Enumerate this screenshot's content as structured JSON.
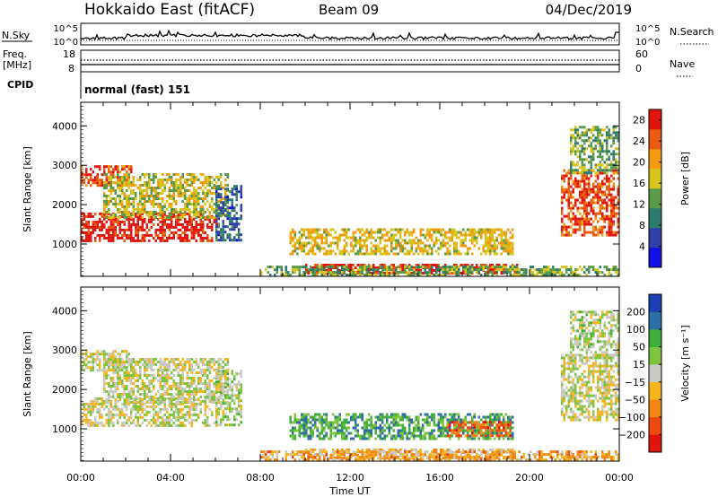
{
  "header": {
    "station": "Hokkaido East (fitACF)",
    "beam": "Beam 09",
    "date": "04/Dec/2019"
  },
  "top_panels": {
    "nsky_label": "N.Sky",
    "nsky_ticks": [
      "10^5",
      "10^0"
    ],
    "nsearch_label": "N.Search",
    "nsearch_ticks": [
      "10^5",
      "10^0"
    ],
    "freq_label": "Freq.",
    "freq_unit": "[MHz]",
    "freq_ticks": [
      18,
      8
    ],
    "nave_label": "Nave",
    "nave_ticks": [
      60,
      0
    ],
    "cpid_label": "CPID",
    "cpid_value": "normal (fast) 151"
  },
  "chart_data": [
    {
      "type": "heatmap",
      "quantity": "Power",
      "ylabel": "Slant Range [km]",
      "xlabel": "Time UT",
      "xlim": [
        0,
        24
      ],
      "ylim": [
        180,
        4600
      ],
      "x_tick_labels": [
        "00:00",
        "04:00",
        "08:00",
        "12:00",
        "16:00",
        "20:00",
        "00:00"
      ],
      "y_ticks": [
        1000,
        2000,
        3000,
        4000
      ],
      "colorbar": {
        "label": "Power [dB]",
        "ticks": [
          4,
          8,
          12,
          16,
          20,
          24,
          28
        ],
        "range": [
          0,
          30
        ],
        "colors": [
          "#1010e6",
          "#2f3fa8",
          "#2e7a6c",
          "#5b9a48",
          "#d8c41e",
          "#f39a12",
          "#e95b0f",
          "#e0150d"
        ]
      },
      "regions": [
        {
          "t": [
            0.0,
            6.1
          ],
          "r": [
            1100,
            1800
          ],
          "level": 0.95
        },
        {
          "t": [
            0.0,
            2.3
          ],
          "r": [
            2500,
            3000
          ],
          "level": 0.85
        },
        {
          "t": [
            1.0,
            6.6
          ],
          "r": [
            1700,
            2800
          ],
          "level": 0.55
        },
        {
          "t": [
            6.0,
            7.2
          ],
          "r": [
            1100,
            2500
          ],
          "level": 0.25
        },
        {
          "t": [
            9.3,
            19.3
          ],
          "r": [
            750,
            1400
          ],
          "level": 0.6
        },
        {
          "t": [
            10.0,
            19.5
          ],
          "r": [
            250,
            500
          ],
          "level": 0.9
        },
        {
          "t": [
            8.0,
            24.0
          ],
          "r": [
            200,
            450
          ],
          "level": 0.45
        },
        {
          "t": [
            21.4,
            24.0
          ],
          "r": [
            1200,
            2900
          ],
          "level": 0.85
        },
        {
          "t": [
            21.8,
            24.0
          ],
          "r": [
            2800,
            4000
          ],
          "level": 0.45
        }
      ]
    },
    {
      "type": "heatmap",
      "quantity": "Velocity",
      "ylabel": "Slant Range [km]",
      "xlabel": "Time UT",
      "xlim": [
        0,
        24
      ],
      "ylim": [
        180,
        4600
      ],
      "x_tick_labels": [
        "00:00",
        "04:00",
        "08:00",
        "12:00",
        "16:00",
        "20:00",
        "00:00"
      ],
      "y_ticks": [
        1000,
        2000,
        3000,
        4000
      ],
      "colorbar": {
        "label": "Velocity [m s⁻¹]",
        "ticks": [
          200,
          100,
          50,
          15,
          -15,
          -50,
          -100,
          -200
        ],
        "range": [
          -250,
          250
        ],
        "colors": [
          "#e0150d",
          "#ee4a10",
          "#f38512",
          "#f6b51f",
          "#c9c9c2",
          "#7ec441",
          "#3fae3a",
          "#2d6ea5",
          "#1c3fb6"
        ]
      },
      "regions": [
        {
          "t": [
            0.0,
            6.1
          ],
          "r": [
            1100,
            1800
          ],
          "level": 0.5
        },
        {
          "t": [
            0.0,
            2.3
          ],
          "r": [
            2500,
            3000
          ],
          "level": 0.5
        },
        {
          "t": [
            1.0,
            6.6
          ],
          "r": [
            1700,
            2800
          ],
          "level": 0.5
        },
        {
          "t": [
            6.0,
            7.2
          ],
          "r": [
            1100,
            2500
          ],
          "level": 0.55
        },
        {
          "t": [
            9.3,
            19.3
          ],
          "r": [
            750,
            1400
          ],
          "level": 0.72
        },
        {
          "t": [
            16.3,
            19.2
          ],
          "r": [
            800,
            1200
          ],
          "level": 0.2
        },
        {
          "t": [
            10.0,
            19.5
          ],
          "r": [
            250,
            500
          ],
          "level": 0.38
        },
        {
          "t": [
            8.0,
            24.0
          ],
          "r": [
            200,
            450
          ],
          "level": 0.35
        },
        {
          "t": [
            21.4,
            24.0
          ],
          "r": [
            1200,
            2900
          ],
          "level": 0.5
        },
        {
          "t": [
            21.8,
            24.0
          ],
          "r": [
            2800,
            4000
          ],
          "level": 0.55
        }
      ]
    }
  ]
}
